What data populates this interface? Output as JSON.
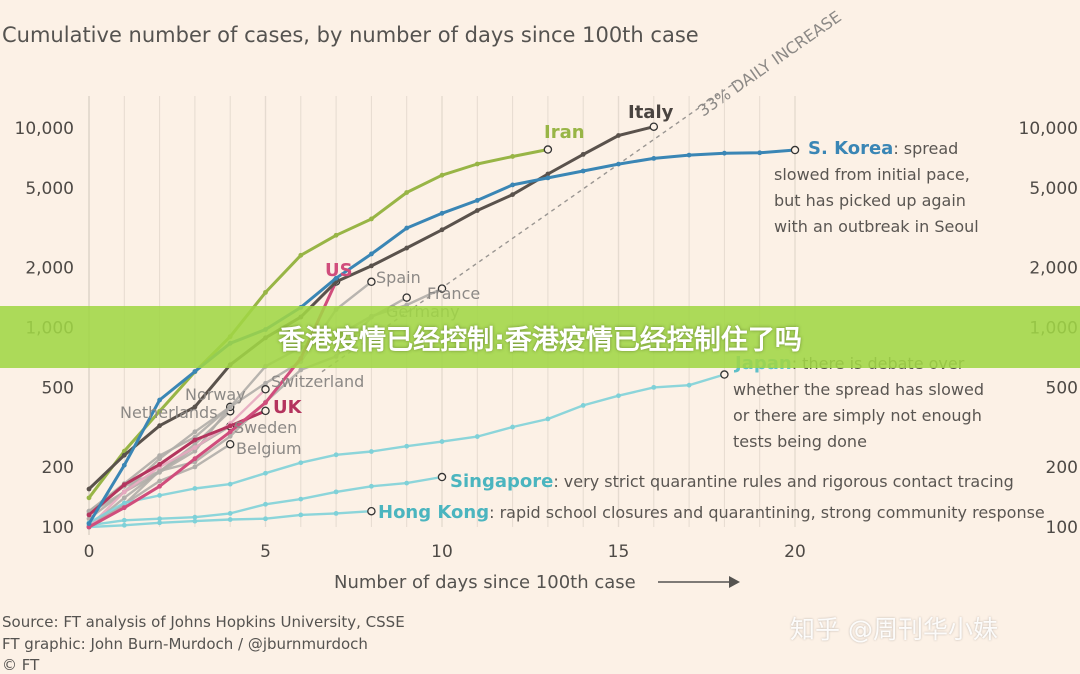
{
  "header": {
    "title": "Cumulative number of cases, by number of days since 100th case"
  },
  "banner": {
    "text": "香港疫情已经控制:香港疫情已经控制住了吗"
  },
  "watermark": {
    "text": "知乎 @周刊华小妹"
  },
  "source": {
    "line1": "Source: FT analysis of Johns Hopkins University, CSSE",
    "line2": "FT graphic: John Burn-Murdoch / @jburnmurdoch",
    "line3": "© FT"
  },
  "chart_data": {
    "type": "line",
    "title": "Cumulative number of cases, by number of days since 100th case",
    "xlabel": "Number of days since 100th case",
    "ylabel": "",
    "y_scale": "log",
    "xlim": [
      0,
      20
    ],
    "ylim": [
      100,
      10000
    ],
    "x_ticks": [
      0,
      5,
      10,
      15,
      20
    ],
    "y_ticks": [
      100,
      200,
      500,
      1000,
      2000,
      5000,
      10000
    ],
    "y_tick_labels": [
      "100",
      "200",
      "500",
      "1,000",
      "2,000",
      "5,000",
      "10,000"
    ],
    "grid": "vertical",
    "reference_line": {
      "label": "33% DAILY INCREASE",
      "daily_growth": 1.33
    },
    "series": [
      {
        "name": "Iran",
        "color": "#98b546",
        "x": [
          0,
          1,
          2,
          3,
          4,
          5,
          6,
          7,
          8,
          9,
          10,
          11,
          12,
          13
        ],
        "y": [
          140,
          240,
          380,
          600,
          900,
          1500,
          2300,
          2900,
          3500,
          4750,
          5800,
          6600,
          7200,
          7800
        ]
      },
      {
        "name": "Italy",
        "color": "#5a524c",
        "x": [
          0,
          1,
          2,
          3,
          4,
          5,
          6,
          7,
          8,
          9,
          10,
          11,
          12,
          13,
          14,
          15,
          16
        ],
        "y": [
          155,
          229,
          322,
          400,
          650,
          888,
          1128,
          1694,
          2036,
          2502,
          3089,
          3858,
          4636,
          5883,
          7375,
          9172,
          10149
        ]
      },
      {
        "name": "S. Korea",
        "color": "#3a86b5",
        "x": [
          0,
          1,
          2,
          3,
          4,
          5,
          6,
          7,
          8,
          9,
          10,
          11,
          12,
          13,
          14,
          15,
          16,
          17,
          18,
          19,
          20
        ],
        "y": [
          104,
          204,
          433,
          602,
          833,
          977,
          1261,
          1766,
          2337,
          3150,
          3736,
          4335,
          5186,
          5621,
          6088,
          6593,
          7041,
          7314,
          7478,
          7513,
          7755
        ]
      },
      {
        "name": "US",
        "color": "#d04d7c",
        "x": [
          0,
          1,
          2,
          3,
          4,
          5,
          6,
          7
        ],
        "y": [
          100,
          125,
          160,
          220,
          300,
          420,
          700,
          1700
        ]
      },
      {
        "name": "Spain",
        "color": "#b0ada9",
        "x": [
          0,
          1,
          2,
          3,
          4,
          5,
          6,
          7,
          8
        ],
        "y": [
          120,
          165,
          228,
          282,
          400,
          525,
          674,
          1231,
          1695
        ]
      },
      {
        "name": "France",
        "color": "#b0ada9",
        "x": [
          0,
          1,
          2,
          3,
          4,
          5,
          6,
          7,
          8,
          9
        ],
        "y": [
          100,
          130,
          191,
          212,
          285,
          423,
          613,
          716,
          1126,
          1412
        ]
      },
      {
        "name": "Germany",
        "color": "#b0ada9",
        "x": [
          0,
          1,
          2,
          3,
          4,
          5,
          6,
          7,
          8,
          9,
          10
        ],
        "y": [
          117,
          150,
          188,
          240,
          400,
          639,
          795,
          902,
          1139,
          1296,
          1567
        ]
      },
      {
        "name": "Switzerland",
        "color": "#e6a8bf",
        "x": [
          0,
          1,
          2,
          3,
          4,
          5
        ],
        "y": [
          100,
          150,
          200,
          250,
          330,
          490
        ]
      },
      {
        "name": "Norway",
        "color": "#b0ada9",
        "x": [
          0,
          1,
          2,
          3,
          4
        ],
        "y": [
          110,
          150,
          220,
          300,
          400
        ]
      },
      {
        "name": "Netherlands",
        "color": "#b0ada9",
        "x": [
          0,
          1,
          2,
          3,
          4
        ],
        "y": [
          120,
          160,
          190,
          260,
          380
        ]
      },
      {
        "name": "UK",
        "color": "#b4345e",
        "x": [
          0,
          1,
          2,
          3,
          4,
          5
        ],
        "y": [
          115,
          163,
          206,
          273,
          321,
          382
        ]
      },
      {
        "name": "Sweden",
        "color": "#b0ada9",
        "x": [
          0,
          1,
          2,
          3,
          4
        ],
        "y": [
          100,
          140,
          190,
          250,
          320
        ]
      },
      {
        "name": "Belgium",
        "color": "#b0ada9",
        "x": [
          0,
          1,
          2,
          3,
          4
        ],
        "y": [
          100,
          130,
          170,
          200,
          260
        ]
      },
      {
        "name": "Japan",
        "color": "#7fd1d8",
        "x": [
          0,
          1,
          2,
          3,
          4,
          5,
          6,
          7,
          8,
          9,
          10,
          11,
          12,
          13,
          14,
          15,
          16,
          17,
          18
        ],
        "y": [
          105,
          132,
          144,
          156,
          164,
          186,
          210,
          230,
          239,
          254,
          268,
          284,
          317,
          348,
          407,
          455,
          501,
          514,
          581
        ]
      },
      {
        "name": "Singapore",
        "color": "#7fd1d8",
        "x": [
          0,
          1,
          2,
          3,
          4,
          5,
          6,
          7,
          8,
          9,
          10
        ],
        "y": [
          102,
          108,
          110,
          112,
          117,
          130,
          138,
          150,
          160,
          166,
          178
        ]
      },
      {
        "name": "Hong Kong",
        "color": "#7fd1d8",
        "x": [
          0,
          1,
          2,
          3,
          4,
          5,
          6,
          7,
          8
        ],
        "y": [
          100,
          102,
          105,
          107,
          109,
          110,
          115,
          117,
          120
        ]
      }
    ],
    "annotations": {
      "korea": {
        "name": "S. Korea",
        "lines": [
          ": spread",
          "slowed from initial pace,",
          "but has picked up again",
          "with an outbreak in Seoul"
        ]
      },
      "japan": {
        "name": "Japan",
        "lines": [
          ": there is debate over",
          "whether the spread has slowed",
          "or there are simply not enough",
          "tests being done"
        ]
      },
      "singapore": {
        "name": "Singapore",
        "text": ": very strict quarantine rules and rigorous contact tracing"
      },
      "hongkong": {
        "name": "Hong Kong",
        "text": ": rapid school closures and quarantining, strong community response"
      }
    }
  }
}
